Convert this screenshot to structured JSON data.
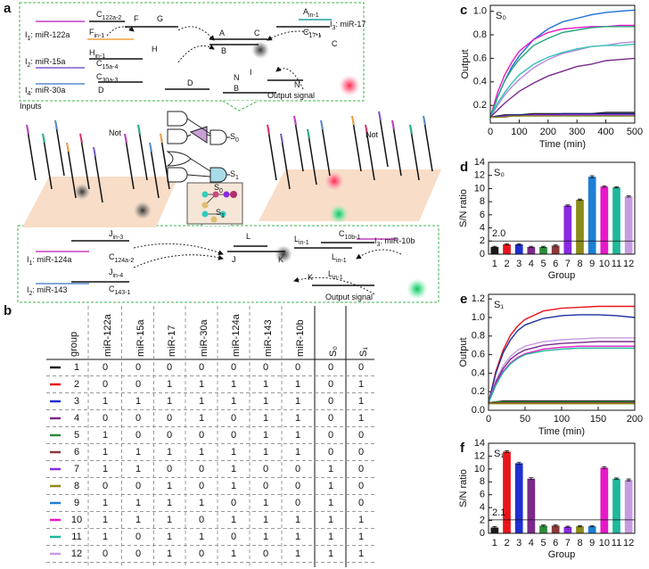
{
  "panel_a": {
    "label": "a",
    "labels": [
      {
        "main": "I",
        "sub": "1",
        "tail": ": miR-122a"
      },
      {
        "main": "C",
        "sub": "122a-2"
      },
      {
        "main": "F",
        "sub": "in-1"
      },
      {
        "main": "F"
      },
      {
        "main": "G"
      },
      {
        "main": "H"
      },
      {
        "main": "H",
        "sub": "in-1"
      },
      {
        "main": "I",
        "sub": "2",
        "tail": ": miR-15a"
      },
      {
        "main": "C",
        "sub": "15a-4"
      },
      {
        "main": "C",
        "sub": "30a-3"
      },
      {
        "main": "I",
        "sub": "4",
        "tail": ": miR-30a"
      },
      {
        "main": "D"
      },
      {
        "main": "D"
      },
      {
        "main": "A"
      },
      {
        "main": "B"
      },
      {
        "main": "C"
      },
      {
        "main": "A",
        "sub": "in-1"
      },
      {
        "main": "C",
        "sub": "17-1"
      },
      {
        "main": "I",
        "sub": "3",
        "tail": ": miR-17"
      },
      {
        "main": "C"
      },
      {
        "main": "I"
      },
      {
        "main": "N"
      },
      {
        "main": "N"
      },
      {
        "main": "B"
      },
      {
        "main": "Output signal"
      },
      {
        "main": "Inputs"
      },
      {
        "main": "Not"
      },
      {
        "main": "S",
        "sub": "0"
      },
      {
        "main": "S",
        "sub": "1"
      },
      {
        "main": "Not"
      },
      {
        "main": "S",
        "sub": "0"
      },
      {
        "main": "S",
        "sub": "1"
      },
      {
        "main": "I",
        "sub": "1",
        "tail": ": miR-124a"
      },
      {
        "main": "J",
        "sub": "in-3"
      },
      {
        "main": "C",
        "sub": "124a-2"
      },
      {
        "main": "I",
        "sub": "2",
        "tail": ": miR-143"
      },
      {
        "main": "J",
        "sub": "in-4"
      },
      {
        "main": "C",
        "sub": "143-1"
      },
      {
        "main": "L"
      },
      {
        "main": "J"
      },
      {
        "main": "K"
      },
      {
        "main": "L",
        "sub": "in-1"
      },
      {
        "main": "C",
        "sub": "10b-1"
      },
      {
        "main": "L",
        "sub": "in-1"
      },
      {
        "main": "I",
        "sub": "3",
        "tail": ": miR-10b"
      },
      {
        "main": "K"
      },
      {
        "main": "L",
        "sub": "in-1"
      },
      {
        "main": "Output signal"
      }
    ]
  },
  "panel_b": {
    "label": "b",
    "header": [
      "group",
      "miR-122a",
      "miR-15a",
      "miR-17",
      "miR-30a",
      "miR-124a",
      "miR-143",
      "miR-10b",
      "S₀",
      "S₁"
    ],
    "row_colors": [
      "#1a1a1a",
      "#e8151b",
      "#1f2fd0",
      "#7b2a8c",
      "#2e8b3a",
      "#8b3a3a",
      "#8a2be2",
      "#8b8b1a",
      "#1e7fd6",
      "#e619c8",
      "#1fb89a",
      "#c79be0"
    ],
    "rows": [
      [
        "1",
        0,
        0,
        0,
        0,
        0,
        0,
        0,
        0,
        0
      ],
      [
        "2",
        0,
        0,
        1,
        1,
        1,
        1,
        1,
        0,
        1
      ],
      [
        "3",
        1,
        1,
        1,
        1,
        1,
        1,
        1,
        0,
        1
      ],
      [
        "4",
        0,
        0,
        0,
        1,
        0,
        1,
        1,
        0,
        1
      ],
      [
        "5",
        1,
        0,
        0,
        0,
        0,
        1,
        1,
        0,
        0
      ],
      [
        "6",
        1,
        1,
        1,
        1,
        1,
        1,
        1,
        0,
        0
      ],
      [
        "7",
        1,
        1,
        0,
        0,
        1,
        0,
        0,
        1,
        0
      ],
      [
        "8",
        0,
        0,
        1,
        0,
        1,
        0,
        0,
        1,
        0
      ],
      [
        "9",
        1,
        1,
        1,
        1,
        0,
        1,
        0,
        1,
        0
      ],
      [
        "10",
        1,
        1,
        1,
        0,
        1,
        1,
        1,
        1,
        1
      ],
      [
        "11",
        1,
        0,
        1,
        1,
        0,
        1,
        1,
        1,
        1
      ],
      [
        "12",
        0,
        0,
        1,
        0,
        1,
        0,
        1,
        1,
        1
      ]
    ]
  },
  "chart_data": [
    {
      "type": "line",
      "panel_label": "c",
      "title": "S₀",
      "title_color": "#e8151b",
      "xlabel": "Time (min)",
      "ylabel": "Output",
      "x": [
        0,
        25,
        50,
        75,
        100,
        150,
        200,
        250,
        300,
        350,
        400,
        450,
        500
      ],
      "xlim": [
        0,
        500
      ],
      "xticks": [
        0,
        100,
        200,
        300,
        400,
        500
      ],
      "ylim": [
        0.05,
        1.05
      ],
      "yticks": [
        0.2,
        0.4,
        0.6,
        0.8,
        {
          "value": 1,
          "label": "1.0"
        }
      ],
      "series": [
        {
          "color": "#1f6fd6",
          "values": [
            0.1,
            0.27,
            0.41,
            0.53,
            0.62,
            0.76,
            0.85,
            0.91,
            0.94,
            0.97,
            0.99,
            1.0,
            1.01
          ]
        },
        {
          "color": "#e619c8",
          "values": [
            0.1,
            0.31,
            0.46,
            0.57,
            0.66,
            0.76,
            0.82,
            0.85,
            0.86,
            0.87,
            0.87,
            0.88,
            0.88
          ]
        },
        {
          "color": "#21a37a",
          "values": [
            0.1,
            0.27,
            0.41,
            0.51,
            0.59,
            0.71,
            0.77,
            0.82,
            0.84,
            0.86,
            0.87,
            0.87,
            0.87
          ]
        },
        {
          "color": "#b48be0",
          "values": [
            0.1,
            0.2,
            0.29,
            0.36,
            0.42,
            0.52,
            0.59,
            0.64,
            0.67,
            0.7,
            0.71,
            0.73,
            0.74
          ]
        },
        {
          "color": "#36c2b5",
          "values": [
            0.1,
            0.22,
            0.31,
            0.39,
            0.46,
            0.55,
            0.61,
            0.65,
            0.68,
            0.7,
            0.71,
            0.71,
            0.72
          ]
        },
        {
          "color": "#7a2a8c",
          "values": [
            0.1,
            0.16,
            0.22,
            0.27,
            0.32,
            0.39,
            0.45,
            0.49,
            0.53,
            0.55,
            0.58,
            0.59,
            0.6
          ]
        },
        {
          "color": "#222222",
          "values": [
            0.1,
            0.11,
            0.12,
            0.12,
            0.12,
            0.13,
            0.13,
            0.13,
            0.13,
            0.13,
            0.14,
            0.14,
            0.14
          ]
        },
        {
          "color": "#1a237e",
          "values": [
            0.1,
            0.11,
            0.11,
            0.12,
            0.12,
            0.12,
            0.12,
            0.13,
            0.13,
            0.13,
            0.13,
            0.13,
            0.13
          ]
        },
        {
          "color": "#8a2be2",
          "values": [
            0.1,
            0.1,
            0.11,
            0.11,
            0.11,
            0.12,
            0.12,
            0.12,
            0.12,
            0.12,
            0.12,
            0.12,
            0.12
          ]
        },
        {
          "color": "#8b8b1a",
          "values": [
            0.1,
            0.1,
            0.1,
            0.11,
            0.11,
            0.11,
            0.11,
            0.11,
            0.11,
            0.11,
            0.11,
            0.11,
            0.11
          ]
        }
      ]
    },
    {
      "type": "bar",
      "panel_label": "d",
      "title": "S₀",
      "title_color": "#e8151b",
      "xlabel": "Group",
      "ylabel": "S/N ratio",
      "categories": [
        "1",
        "2",
        "3",
        "4",
        "5",
        "6",
        "7",
        "8",
        "9",
        "10",
        "11",
        "12"
      ],
      "values": [
        1.1,
        1.5,
        1.5,
        1.1,
        1.1,
        1.3,
        7.4,
        8.3,
        11.8,
        10.3,
        10.2,
        8.8
      ],
      "errors": [
        0.1,
        0.1,
        0.1,
        0.1,
        0.1,
        0.1,
        0.1,
        0.1,
        0.15,
        0.1,
        0.1,
        0.1
      ],
      "colors": [
        "#1a1a1a",
        "#e8151b",
        "#1f2fd0",
        "#7b2a8c",
        "#2e8b3a",
        "#8b3a3a",
        "#8a2be2",
        "#8b8b1a",
        "#1e7fd6",
        "#e619c8",
        "#1fb89a",
        "#c79be0"
      ],
      "threshold": {
        "value": 2,
        "label": "2.0"
      },
      "ylim": [
        0,
        14
      ],
      "yticks": [
        0,
        2,
        4,
        6,
        8,
        10,
        12,
        14
      ]
    },
    {
      "type": "line",
      "panel_label": "e",
      "title": "S₁",
      "title_color": "#1fa86a",
      "xlabel": "Time (min)",
      "ylabel": "Output",
      "x": [
        0,
        10,
        20,
        30,
        40,
        50,
        75,
        100,
        125,
        150,
        175,
        200
      ],
      "xlim": [
        0,
        200
      ],
      "xticks": [
        0,
        50,
        100,
        150,
        200
      ],
      "ylim": [
        0,
        1.25
      ],
      "yticks": [
        {
          "value": 0,
          "label": "0.0"
        },
        0.2,
        0.4,
        0.6,
        0.8,
        {
          "value": 1,
          "label": "1.0"
        },
        1.2
      ],
      "series": [
        {
          "color": "#e8151b",
          "values": [
            0.08,
            0.42,
            0.65,
            0.81,
            0.91,
            0.98,
            1.07,
            1.1,
            1.11,
            1.12,
            1.12,
            1.12
          ]
        },
        {
          "color": "#1f2f9e",
          "values": [
            0.08,
            0.4,
            0.62,
            0.76,
            0.86,
            0.92,
            0.99,
            1.02,
            1.03,
            1.03,
            1.02,
            1.0
          ]
        },
        {
          "color": "#c79be0",
          "values": [
            0.08,
            0.32,
            0.48,
            0.58,
            0.65,
            0.69,
            0.74,
            0.76,
            0.77,
            0.78,
            0.78,
            0.78
          ]
        },
        {
          "color": "#7b2a8c",
          "values": [
            0.08,
            0.3,
            0.45,
            0.55,
            0.61,
            0.65,
            0.7,
            0.72,
            0.73,
            0.74,
            0.74,
            0.74
          ]
        },
        {
          "color": "#e619c8",
          "values": [
            0.08,
            0.28,
            0.42,
            0.51,
            0.57,
            0.61,
            0.66,
            0.68,
            0.69,
            0.69,
            0.69,
            0.69
          ]
        },
        {
          "color": "#1fb89a",
          "values": [
            0.08,
            0.27,
            0.41,
            0.5,
            0.56,
            0.6,
            0.64,
            0.66,
            0.67,
            0.67,
            0.67,
            0.67
          ]
        },
        {
          "color": "#222222",
          "values": [
            0.08,
            0.09,
            0.1,
            0.1,
            0.1,
            0.1,
            0.1,
            0.1,
            0.1,
            0.1,
            0.1,
            0.1
          ]
        },
        {
          "color": "#2e8b3a",
          "values": [
            0.08,
            0.09,
            0.09,
            0.09,
            0.09,
            0.09,
            0.09,
            0.09,
            0.09,
            0.09,
            0.09,
            0.09
          ]
        },
        {
          "color": "#8b3a3a",
          "values": [
            0.08,
            0.08,
            0.08,
            0.08,
            0.08,
            0.08,
            0.08,
            0.08,
            0.08,
            0.08,
            0.08,
            0.08
          ]
        },
        {
          "color": "#8b8b1a",
          "values": [
            0.07,
            0.07,
            0.07,
            0.07,
            0.07,
            0.07,
            0.07,
            0.07,
            0.07,
            0.07,
            0.07,
            0.07
          ]
        }
      ]
    },
    {
      "type": "bar",
      "panel_label": "f",
      "title": "S₁",
      "title_color": "#1fa86a",
      "xlabel": "Group",
      "ylabel": "S/N ratio",
      "categories": [
        "1",
        "2",
        "3",
        "4",
        "5",
        "6",
        "7",
        "8",
        "9",
        "10",
        "11",
        "12"
      ],
      "values": [
        0.9,
        12.7,
        10.9,
        8.5,
        1.2,
        1.2,
        1.0,
        1.1,
        1.1,
        10.2,
        8.5,
        8.3
      ],
      "errors": [
        0.15,
        0.15,
        0.15,
        0.15,
        0.1,
        0.1,
        0.1,
        0.1,
        0.1,
        0.15,
        0.1,
        0.15
      ],
      "colors": [
        "#1a1a1a",
        "#e8151b",
        "#1f2fd0",
        "#7b2a8c",
        "#2e8b3a",
        "#8b3a3a",
        "#8a2be2",
        "#8b8b1a",
        "#1e7fd6",
        "#e619c8",
        "#1fb89a",
        "#c79be0"
      ],
      "threshold": {
        "value": 2.1,
        "label": "2.1"
      },
      "ylim": [
        0,
        14
      ],
      "yticks": [
        0,
        2,
        4,
        6,
        8,
        10,
        12,
        14
      ]
    }
  ]
}
